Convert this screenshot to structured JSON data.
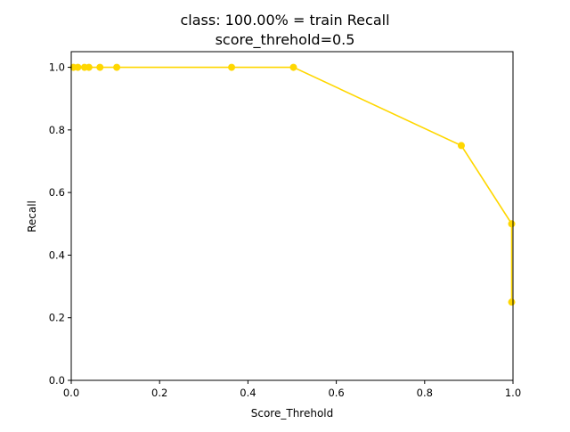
{
  "chart_data": {
    "type": "line",
    "title": "class: 100.00% = train Recall",
    "subtitle": "score_threhold=0.5",
    "xlabel": "Score_Threhold",
    "ylabel": "Recall",
    "xlim": [
      0.0,
      1.0
    ],
    "ylim": [
      0.0,
      1.05
    ],
    "x_ticks": [
      "0.0",
      "0.2",
      "0.4",
      "0.6",
      "0.8",
      "1.0"
    ],
    "y_ticks": [
      "0.0",
      "0.2",
      "0.4",
      "0.6",
      "0.8",
      "1.0"
    ],
    "grid": false,
    "color": "#FFD700",
    "series": [
      {
        "x": [
          0.005,
          0.015,
          0.03,
          0.04,
          0.065,
          0.103,
          0.363,
          0.503,
          0.883,
          0.997,
          0.997
        ],
        "y": [
          1.0,
          1.0,
          1.0,
          1.0,
          1.0,
          1.0,
          1.0,
          1.0,
          0.75,
          0.5,
          0.25
        ]
      }
    ]
  }
}
